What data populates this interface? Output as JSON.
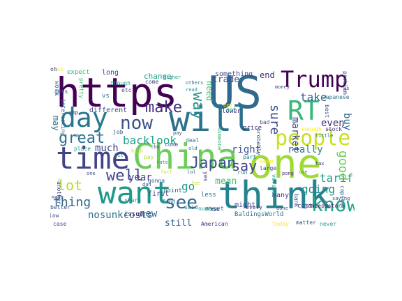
{
  "cloud": {
    "words": [
      {
        "text": "https",
        "color": "#440154"
      },
      {
        "text": "US",
        "color": "#31688e"
      },
      {
        "text": "think",
        "color": "#26828e"
      },
      {
        "text": "will",
        "color": "#2c728e"
      },
      {
        "text": "one",
        "color": "#a0da39"
      },
      {
        "text": "China",
        "color": "#6ccd5a"
      },
      {
        "text": "time",
        "color": "#414487"
      },
      {
        "text": "want",
        "color": "#1f988b"
      },
      {
        "text": "Trump",
        "color": "#440154"
      },
      {
        "text": "RT",
        "color": "#35b779"
      },
      {
        "text": "day",
        "color": "#2a788e"
      },
      {
        "text": "people",
        "color": "#c8e020"
      },
      {
        "text": "know",
        "color": "#21a585"
      },
      {
        "text": "now",
        "color": "#3b528b"
      },
      {
        "text": "make",
        "color": "#472d7b"
      },
      {
        "text": "way",
        "color": "#21918c"
      },
      {
        "text": "see",
        "color": "#31688e"
      },
      {
        "text": "well",
        "color": "#3e4989"
      },
      {
        "text": "great",
        "color": "#2c728e"
      },
      {
        "text": "Japan",
        "color": "#3b528b"
      },
      {
        "text": "say",
        "color": "#433e85"
      },
      {
        "text": "lot",
        "color": "#b5de2b"
      },
      {
        "text": "sure",
        "color": "#3e4989"
      },
      {
        "text": "good",
        "color": "#6ccd5a"
      },
      {
        "text": "thing",
        "color": "#31688e"
      },
      {
        "text": "nosunkcosts",
        "color": "#2d708e"
      },
      {
        "text": "backlook",
        "color": "#1f9e89"
      },
      {
        "text": "need",
        "color": "#3dbc74"
      },
      {
        "text": "go",
        "color": "#1f988b"
      },
      {
        "text": "right",
        "color": "#3b528b"
      },
      {
        "text": "year",
        "color": "#424086"
      },
      {
        "text": "much",
        "color": "#3e4989"
      },
      {
        "text": "take",
        "color": "#355f8d"
      },
      {
        "text": "tariff",
        "color": "#1f9e89"
      },
      {
        "text": "going",
        "color": "#21918c"
      },
      {
        "text": "really",
        "color": "#2a788e"
      },
      {
        "text": "market",
        "color": "#3e4989"
      },
      {
        "text": "mean",
        "color": "#4ac16d"
      },
      {
        "text": "trade",
        "color": "#3b528b"
      },
      {
        "text": "even",
        "color": "#472d7b"
      },
      {
        "text": "buy",
        "color": "#31688e"
      },
      {
        "text": "may",
        "color": "#2c728e"
      },
      {
        "text": "new",
        "color": "#355f8d"
      },
      {
        "text": "still",
        "color": "#34618d"
      },
      {
        "text": "end",
        "color": "#46327e"
      },
      {
        "text": "long",
        "color": "#3f4788"
      },
      {
        "text": "change",
        "color": "#1fa188"
      },
      {
        "text": "something",
        "color": "#3e4989"
      },
      {
        "text": "issue",
        "color": "#482173"
      },
      {
        "text": "share",
        "color": "#21918c"
      },
      {
        "text": "first",
        "color": "#3f4788"
      },
      {
        "text": "point",
        "color": "#365c8d"
      },
      {
        "text": "fund",
        "color": "#2c728e"
      },
      {
        "text": "lower",
        "color": "#482878"
      },
      {
        "text": "price",
        "color": "#482475"
      },
      {
        "text": "part",
        "color": "#25848e"
      },
      {
        "text": "cost",
        "color": "#3e4989"
      },
      {
        "text": "bank",
        "color": "#3b528b"
      },
      {
        "text": "many",
        "color": "#46327e"
      },
      {
        "text": "might",
        "color": "#3e4989"
      },
      {
        "text": "less",
        "color": "#2d708e"
      },
      {
        "text": "number",
        "color": "#1f9e89"
      },
      {
        "text": "BaldingsWorld",
        "color": "#2c728e"
      },
      {
        "text": "American",
        "color": "#46327e"
      },
      {
        "text": "jamiepastore",
        "color": "#482173"
      },
      {
        "text": "better",
        "color": "#3b528b"
      },
      {
        "text": "work",
        "color": "#2c728e"
      },
      {
        "text": "expect",
        "color": "#35b779"
      },
      {
        "text": "different",
        "color": "#3f4788"
      },
      {
        "text": "vs",
        "color": "#2d708e"
      },
      {
        "text": "etc",
        "color": "#3b528b"
      },
      {
        "text": "come",
        "color": "#3e4989"
      },
      {
        "text": "though",
        "color": "#1f9e89"
      },
      {
        "text": "others",
        "color": "#2d708e"
      },
      {
        "text": "read",
        "color": "#21918c"
      },
      {
        "text": "stock",
        "color": "#46327e"
      },
      {
        "text": "little",
        "color": "#2c728e"
      },
      {
        "text": "Japanese",
        "color": "#2c728e"
      },
      {
        "text": "interesting",
        "color": "#2c728e"
      },
      {
        "text": "made",
        "color": "#3b528b"
      },
      {
        "text": "place",
        "color": "#1f988b"
      },
      {
        "text": "high",
        "color": "#bddf26"
      },
      {
        "text": "low",
        "color": "#3e4989"
      },
      {
        "text": "case",
        "color": "#3f4788"
      },
      {
        "text": "asset",
        "color": "#2c728e"
      },
      {
        "text": "said",
        "color": "#2c728e"
      },
      {
        "text": "every",
        "color": "#46327e"
      },
      {
        "text": "today",
        "color": "#fde725"
      },
      {
        "text": "matter",
        "color": "#3b528b"
      },
      {
        "text": "never",
        "color": "#1f9e89"
      },
      {
        "text": "capital",
        "color": "#2c728e"
      },
      {
        "text": "another",
        "color": "#3e4989"
      },
      {
        "text": "got",
        "color": "#1f9e89"
      },
      {
        "text": "bad",
        "color": "#3b528b"
      },
      {
        "text": "probably",
        "color": "#3b528b"
      },
      {
        "text": "enough",
        "color": "#fde725"
      },
      {
        "text": "best",
        "color": "#3e4989"
      },
      {
        "text": "gets",
        "color": "#3b528b"
      },
      {
        "text": "pretty",
        "color": "#35b779"
      },
      {
        "text": "higher",
        "color": "#21918c"
      },
      {
        "text": "money",
        "color": "#3e4989"
      },
      {
        "text": "problem",
        "color": "#3b528b"
      },
      {
        "text": "amp",
        "color": "#3b528b"
      },
      {
        "text": "job",
        "color": "#3b528b"
      },
      {
        "text": "deal",
        "color": "#2c728e"
      },
      {
        "text": "old",
        "color": "#2c728e"
      },
      {
        "text": "two",
        "color": "#46327e"
      },
      {
        "text": "done",
        "color": "#3e4989"
      },
      {
        "text": "version",
        "color": "#1f9e89"
      },
      {
        "text": "pay",
        "color": "#b5de2b"
      },
      {
        "text": "someone",
        "color": "#35b779"
      },
      {
        "text": "large",
        "color": "#3e4989"
      },
      {
        "text": "rate",
        "color": "#21918c"
      },
      {
        "text": "run",
        "color": "#21918c"
      },
      {
        "text": "come",
        "color": "#3b528b"
      },
      {
        "text": "yes",
        "color": "#46327e"
      },
      {
        "text": "exp",
        "color": "#fde725"
      },
      {
        "text": "dan",
        "color": "#3b528b"
      },
      {
        "text": "tho",
        "color": "#3b528b"
      },
      {
        "text": "fact",
        "color": "#c8e020"
      },
      {
        "text": "seem",
        "color": "#fde725"
      },
      {
        "text": "tax",
        "color": "#46327e"
      },
      {
        "text": "pay",
        "color": "#3e4989"
      },
      {
        "text": "us",
        "color": "#46327e"
      },
      {
        "text": "gonna",
        "color": "#3b528b"
      },
      {
        "text": "fee",
        "color": "#c8e020"
      },
      {
        "text": "ok",
        "color": "#3b528b"
      },
      {
        "text": "one",
        "color": "#3b528b"
      },
      {
        "text": "use",
        "color": "#1f9e89"
      },
      {
        "text": "bit",
        "color": "#2c728e"
      },
      {
        "text": "lol",
        "color": "#3b528b"
      },
      {
        "text": "pong",
        "color": "#46327e"
      },
      {
        "text": "saying",
        "color": "#3e4989"
      },
      {
        "text": "risk",
        "color": "#fde725"
      },
      {
        "text": "oh",
        "color": "#3e4989"
      }
    ]
  }
}
